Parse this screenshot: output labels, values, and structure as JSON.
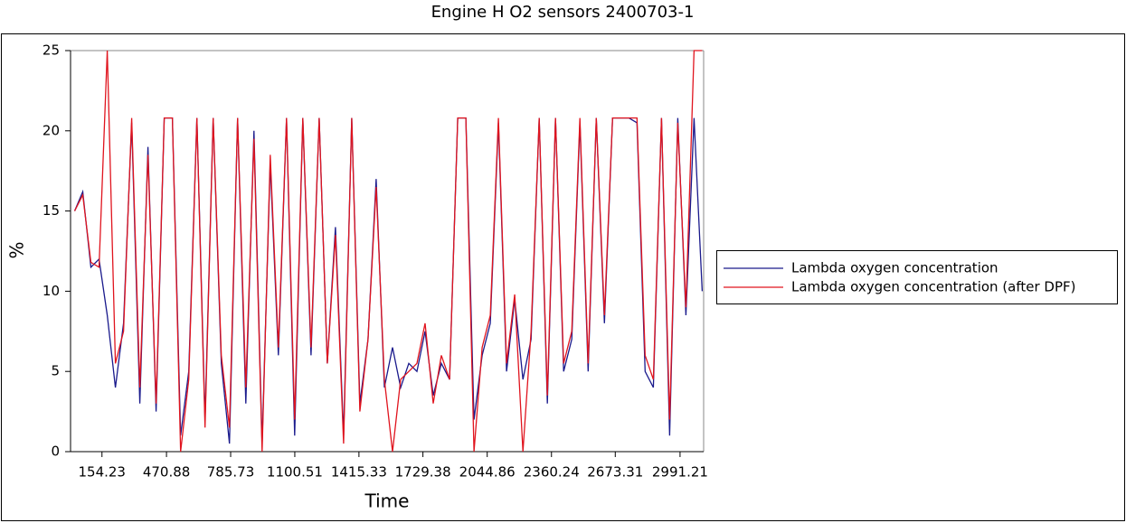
{
  "chart_data": {
    "type": "line",
    "title": "Engine H    O2 sensors 2400703-1",
    "xlabel": "Time",
    "ylabel": "%",
    "x": [
      20,
      60,
      100,
      140,
      180,
      220,
      260,
      300,
      340,
      380,
      420,
      460,
      500,
      540,
      580,
      620,
      660,
      700,
      740,
      780,
      820,
      860,
      900,
      940,
      980,
      1020,
      1060,
      1100,
      1140,
      1180,
      1220,
      1260,
      1300,
      1340,
      1380,
      1420,
      1460,
      1500,
      1540,
      1580,
      1620,
      1660,
      1700,
      1740,
      1780,
      1820,
      1860,
      1900,
      1940,
      1980,
      2020,
      2060,
      2100,
      2140,
      2180,
      2220,
      2260,
      2300,
      2340,
      2380,
      2420,
      2460,
      2500,
      2540,
      2580,
      2620,
      2660,
      2700,
      2740,
      2780,
      2820,
      2860,
      2900,
      2940,
      2980,
      3020,
      3060,
      3100
    ],
    "series": [
      {
        "name": "Lambda oxygen concentration",
        "color": "#1a1a8c",
        "values": [
          15.0,
          16.2,
          11.5,
          12.0,
          8.5,
          4.0,
          8.0,
          20.5,
          3.0,
          19.0,
          2.5,
          20.8,
          20.8,
          1.0,
          5.0,
          20.8,
          2.0,
          20.8,
          5.5,
          0.5,
          20.8,
          3.0,
          20.0,
          0.5,
          18.0,
          6.0,
          20.8,
          1.0,
          20.8,
          6.0,
          20.8,
          5.5,
          14.0,
          1.0,
          20.8,
          3.0,
          7.0,
          17.0,
          4.0,
          6.5,
          4.0,
          5.5,
          5.0,
          7.5,
          3.5,
          5.5,
          4.5,
          20.8,
          20.8,
          2.0,
          6.0,
          8.0,
          20.5,
          5.0,
          9.5,
          4.5,
          7.0,
          20.8,
          3.0,
          20.8,
          5.0,
          7.0,
          20.5,
          5.0,
          20.8,
          8.0,
          20.8,
          20.8,
          20.8,
          20.5,
          5.0,
          4.0,
          20.8,
          1.0,
          20.8,
          8.5,
          20.8,
          10.0
        ]
      },
      {
        "name": "Lambda oxygen concentration (after DPF)",
        "color": "#e0141e",
        "values": [
          15.0,
          16.0,
          11.8,
          11.5,
          25,
          5.5,
          7.5,
          20.8,
          4.0,
          18.5,
          3.0,
          20.8,
          20.8,
          0,
          4.5,
          20.8,
          1.5,
          20.8,
          6.0,
          1.5,
          20.8,
          4.0,
          19.5,
          0,
          18.5,
          6.5,
          20.8,
          2.0,
          20.8,
          6.5,
          20.8,
          5.5,
          13.5,
          0.5,
          20.8,
          2.5,
          7.0,
          16.5,
          4.5,
          0,
          4.5,
          5.0,
          5.5,
          8.0,
          3.0,
          6.0,
          4.5,
          20.8,
          20.8,
          0,
          6.5,
          8.5,
          20.8,
          5.5,
          9.8,
          0,
          7.5,
          20.8,
          3.5,
          20.8,
          5.5,
          7.5,
          20.8,
          5.5,
          20.8,
          8.5,
          20.8,
          20.8,
          20.8,
          20.8,
          6.0,
          4.5,
          20.8,
          2.0,
          20.5,
          9.0,
          25,
          25
        ]
      }
    ],
    "xlim": [
      0,
      3107
    ],
    "xticks": [
      154.23,
      470.88,
      785.73,
      1100.51,
      1415.33,
      1729.38,
      2044.86,
      2360.24,
      2673.31,
      2991.21
    ],
    "ylim": [
      0,
      25
    ],
    "yticks": [
      0,
      5,
      10,
      15,
      20,
      25
    ]
  }
}
